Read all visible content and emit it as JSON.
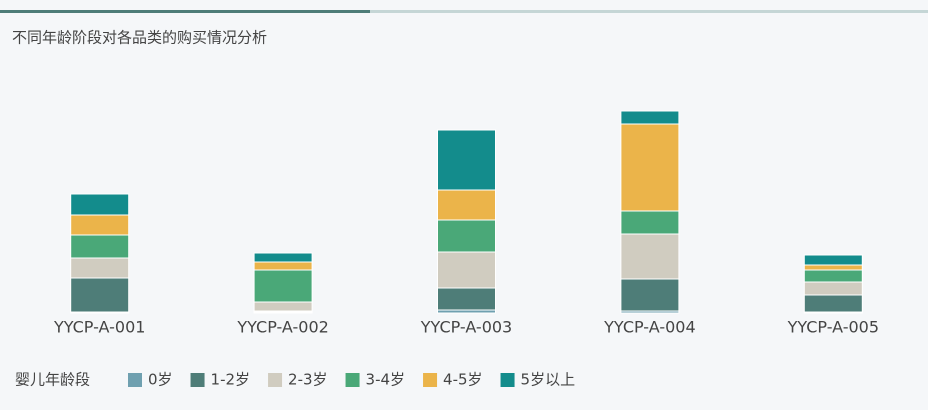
{
  "chart_data": {
    "type": "stacked_bar",
    "title": "不同年龄阶段对各品类的购买情况分析",
    "categories": [
      "YYCP-A-001",
      "YYCP-A-002",
      "YYCP-A-003",
      "YYCP-A-004",
      "YYCP-A-005"
    ],
    "legend_title": "婴儿年龄段",
    "series": [
      {
        "name": "0岁",
        "color": "#6fa0b0",
        "values": [
          1,
          1,
          3,
          2,
          1
        ]
      },
      {
        "name": "1-2岁",
        "color": "#4e7d78",
        "values": [
          34,
          1,
          22,
          32,
          17
        ]
      },
      {
        "name": "2-3岁",
        "color": "#d0ccc0",
        "values": [
          20,
          9,
          36,
          45,
          13
        ]
      },
      {
        "name": "3-4岁",
        "color": "#4aa878",
        "values": [
          23,
          32,
          32,
          23,
          12
        ]
      },
      {
        "name": "4-5岁",
        "color": "#ebb44a",
        "values": [
          20,
          8,
          30,
          87,
          5
        ]
      },
      {
        "name": "5岁以上",
        "color": "#138c8c",
        "values": [
          21,
          9,
          60,
          13,
          10
        ]
      }
    ],
    "ylim": [
      0,
      220
    ]
  }
}
